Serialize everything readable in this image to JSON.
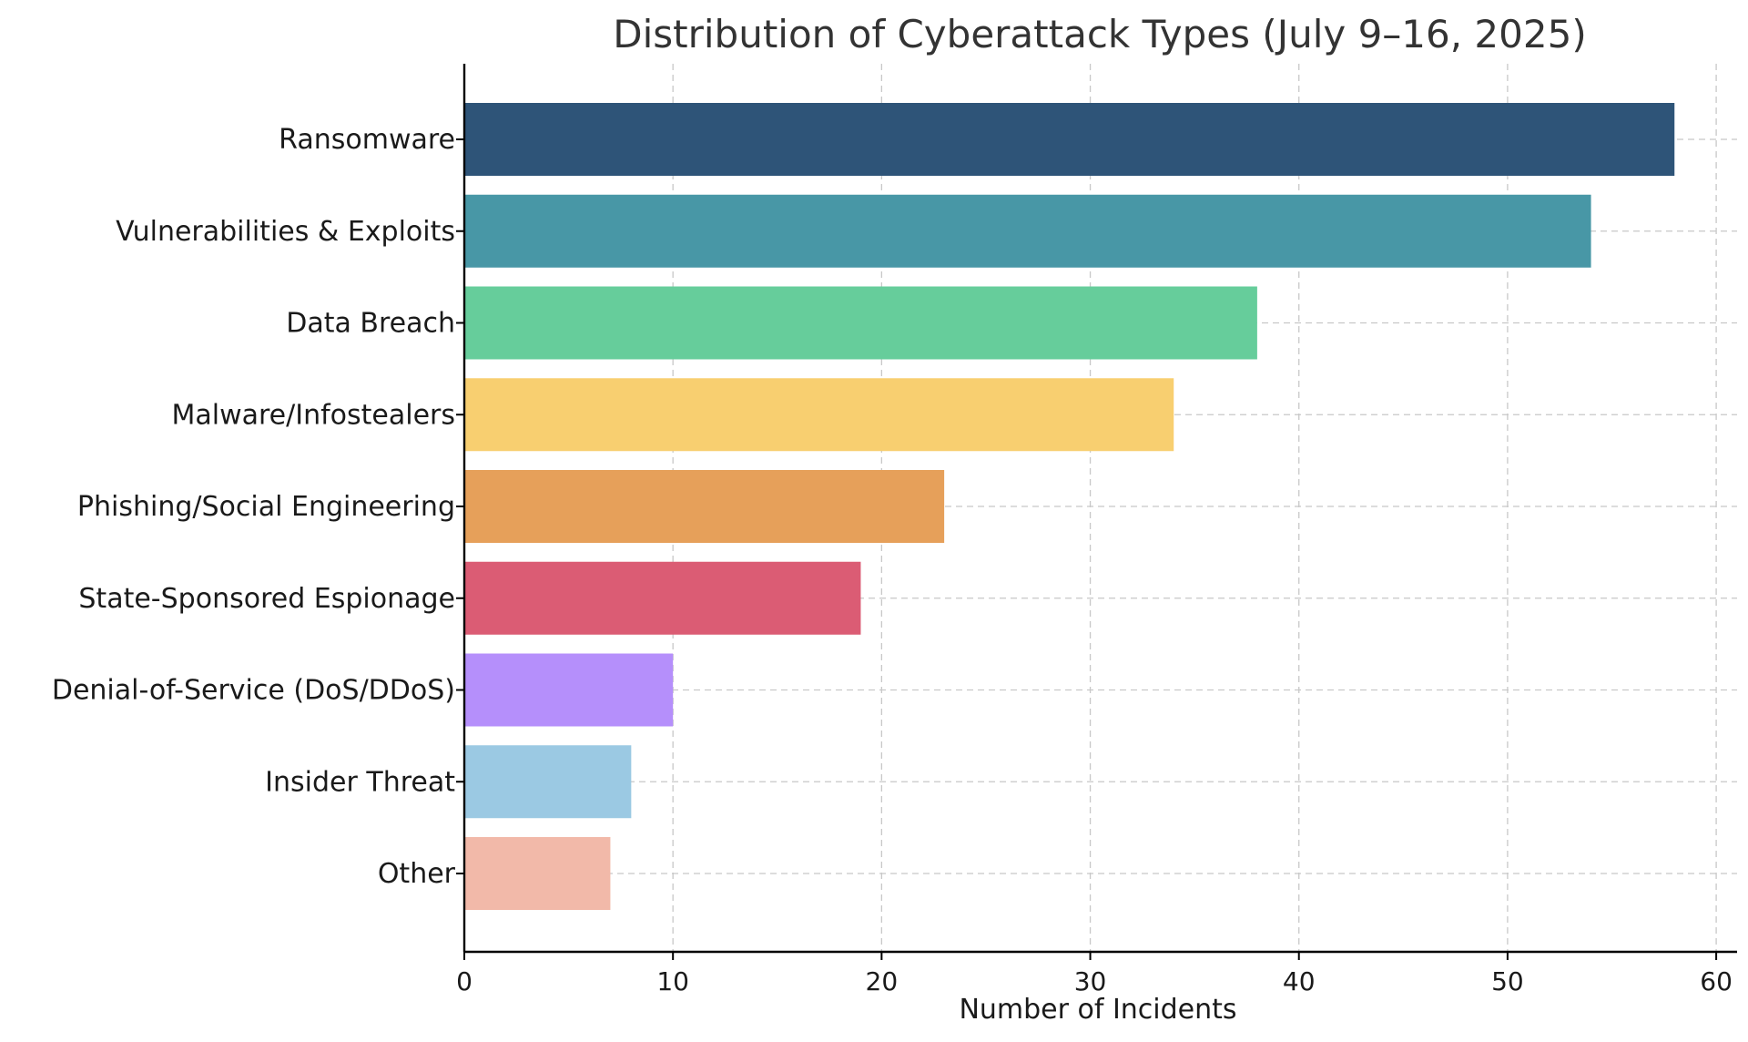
{
  "chart_data": {
    "type": "bar",
    "orientation": "horizontal",
    "title": "Distribution of Cyberattack Types (July 9–16, 2025)",
    "xlabel": "Number of Incidents",
    "ylabel": "",
    "xlim": [
      0,
      61
    ],
    "xticks": [
      0,
      10,
      20,
      30,
      40,
      50,
      60
    ],
    "grid": true,
    "categories": [
      "Ransomware",
      "Vulnerabilities & Exploits",
      "Data Breach",
      "Malware/Infostealers",
      "Phishing/Social Engineering",
      "State-Sponsored Espionage",
      "Denial-of-Service (DoS/DDoS)",
      "Insider Threat",
      "Other"
    ],
    "values": [
      58,
      54,
      38,
      34,
      23,
      19,
      10,
      8,
      7
    ],
    "colors": [
      "#2e5478",
      "#4897a6",
      "#66cd9b",
      "#f8cf70",
      "#e6a05a",
      "#db5c74",
      "#b58ffb",
      "#9bc9e3",
      "#f2b9a9"
    ]
  }
}
